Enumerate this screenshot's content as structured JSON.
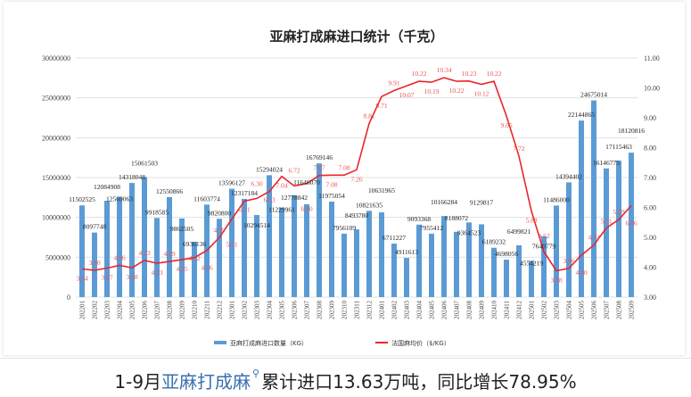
{
  "chart_data": {
    "type": "bar+line",
    "title": "亚麻打成麻进口统计（千克）",
    "categories": [
      "202201",
      "202202",
      "202203",
      "202204",
      "202205",
      "202206",
      "202207",
      "202208",
      "202209",
      "202210",
      "202211",
      "202212",
      "202301",
      "202302",
      "202303",
      "202304",
      "202305",
      "202306",
      "202307",
      "202308",
      "202309",
      "202310",
      "202311",
      "202312",
      "202401",
      "202402",
      "202403",
      "202404",
      "202405",
      "202406",
      "202407",
      "202408",
      "202409",
      "202410",
      "202411",
      "202412",
      "202501",
      "202502",
      "202503",
      "202504",
      "202505",
      "202506",
      "202507",
      "202508",
      "202509"
    ],
    "series": [
      {
        "name": "亚麻打成麻进口数量（KG）",
        "type": "bar",
        "axis": "left",
        "color": "#5b9bd5",
        "values": [
          11502525,
          8097748,
          12084908,
          12569063,
          14318048,
          15061503,
          9918585,
          12550866,
          9862505,
          6936136,
          11603774,
          9820800,
          13596127,
          12317184,
          10294514,
          15294024,
          11229961,
          12778842,
          11646070,
          16769146,
          11975054,
          7956109,
          8493780,
          10821635,
          10631965,
          6711227,
          4911613,
          9093368,
          7955412,
          10166284,
          8188072,
          9364523,
          9129817,
          6189232,
          4698056,
          6499821,
          4554219,
          7640779,
          11486000,
          14394402,
          22144865,
          24675014,
          16146775,
          17115463,
          18120816
        ]
      },
      {
        "name": "法国麻均价（$/KG）",
        "type": "line",
        "axis": "right",
        "color": "#e8262a",
        "values": [
          3.94,
          3.9,
          3.97,
          4.06,
          3.98,
          4.23,
          4.13,
          4.19,
          4.25,
          4.32,
          4.56,
          4.99,
          5.61,
          6.21,
          6.3,
          6.53,
          7.04,
          6.72,
          6.8,
          7.07,
          7.08,
          7.08,
          7.26,
          8.81,
          9.71,
          9.91,
          10.07,
          10.22,
          10.19,
          10.34,
          10.22,
          10.23,
          10.12,
          10.22,
          9.06,
          7.72,
          5.88,
          4.52,
          3.88,
          3.96,
          4.4,
          4.74,
          5.31,
          5.59,
          6.06
        ]
      }
    ],
    "ylim_left": [
      0,
      30000000
    ],
    "yticks_left": [
      "0",
      "5000000",
      "10000000",
      "15000000",
      "20000000",
      "25000000",
      "30000000"
    ],
    "ylim_right": [
      3,
      11
    ],
    "yticks_right": [
      "3.00",
      "4.00",
      "5.00",
      "6.00",
      "7.00",
      "8.00",
      "9.00",
      "10.00",
      "11.00"
    ],
    "grid": true,
    "legend": "bottom"
  },
  "caption": {
    "prefix": "1-9月",
    "link": "亚麻打成麻",
    "suffix": "累计进口13.63万吨，同比增长78.95%"
  }
}
